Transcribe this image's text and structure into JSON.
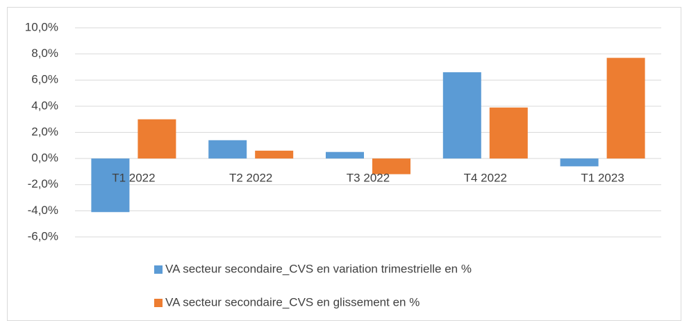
{
  "chart_data": {
    "type": "bar",
    "categories": [
      "T1 2022",
      "T2 2022",
      "T3 2022",
      "T4 2022",
      "T1 2023"
    ],
    "series": [
      {
        "name": "VA secteur secondaire_CVS en variation trimestrielle en %",
        "color": "#5b9bd5",
        "values": [
          -4.1,
          1.4,
          0.5,
          6.6,
          -0.6
        ]
      },
      {
        "name": "VA secteur secondaire_CVS en glissement en %",
        "color": "#ed7d31",
        "values": [
          3.0,
          0.6,
          -1.2,
          3.9,
          7.7
        ]
      }
    ],
    "ylim": [
      -6,
      10
    ],
    "yticks": [
      {
        "value": -6,
        "label": "-6,0%"
      },
      {
        "value": -4,
        "label": "-4,0%"
      },
      {
        "value": -2,
        "label": "-2,0%"
      },
      {
        "value": 0,
        "label": "0,0%"
      },
      {
        "value": 2,
        "label": "2,0%"
      },
      {
        "value": 4,
        "label": "4,0%"
      },
      {
        "value": 6,
        "label": "6,0%"
      },
      {
        "value": 8,
        "label": "8,0%"
      },
      {
        "value": 10,
        "label": "10,0%"
      }
    ],
    "grid": true,
    "legend": "bottom"
  }
}
